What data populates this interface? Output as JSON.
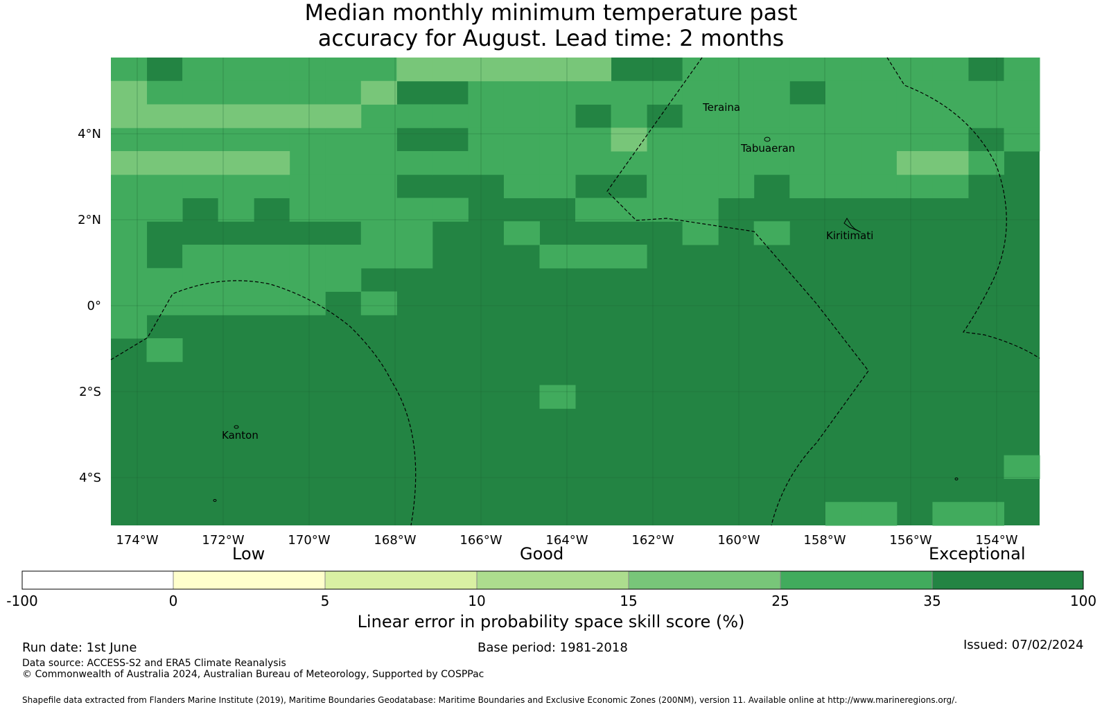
{
  "title_line1": "Median monthly minimum temperature past",
  "title_line2": "accuracy for August. Lead time: 2 months",
  "map": {
    "lon_labels": [
      "174°W",
      "172°W",
      "170°W",
      "168°W",
      "166°W",
      "164°W",
      "162°W",
      "160°W",
      "158°W",
      "156°W",
      "154°W"
    ],
    "lat_labels": [
      "4°N",
      "2°N",
      "0°",
      "2°S",
      "4°S"
    ],
    "places": [
      "Teraina",
      "Tabuaeran",
      "Kiritimati",
      "Kanton"
    ],
    "colors": {
      "very_light": "#78c679",
      "light": "#41ab5d",
      "dark": "#238443"
    },
    "grid_cells": {
      "cols": 26,
      "rows": 20,
      "light": [
        [
          0,
          0
        ],
        [
          2,
          0
        ],
        [
          3,
          0
        ],
        [
          4,
          0
        ],
        [
          5,
          0
        ],
        [
          6,
          0
        ],
        [
          7,
          0
        ],
        [
          8,
          0
        ],
        [
          9,
          0
        ],
        [
          10,
          0
        ],
        [
          11,
          0
        ],
        [
          12,
          0
        ],
        [
          16,
          0
        ],
        [
          17,
          0
        ],
        [
          18,
          0
        ],
        [
          19,
          0
        ],
        [
          20,
          0
        ],
        [
          21,
          0
        ],
        [
          22,
          0
        ],
        [
          23,
          0
        ],
        [
          25,
          0
        ],
        [
          1,
          1
        ],
        [
          2,
          1
        ],
        [
          3,
          1
        ],
        [
          4,
          1
        ],
        [
          5,
          1
        ],
        [
          6,
          1
        ],
        [
          7,
          1
        ],
        [
          10,
          1
        ],
        [
          11,
          1
        ],
        [
          12,
          1
        ],
        [
          13,
          1
        ],
        [
          14,
          1
        ],
        [
          15,
          1
        ],
        [
          16,
          1
        ],
        [
          17,
          1
        ],
        [
          18,
          1
        ],
        [
          20,
          1
        ],
        [
          21,
          1
        ],
        [
          22,
          1
        ],
        [
          23,
          1
        ],
        [
          24,
          1
        ],
        [
          25,
          1
        ],
        [
          5,
          2
        ],
        [
          6,
          2
        ],
        [
          7,
          2
        ],
        [
          8,
          2
        ],
        [
          9,
          2
        ],
        [
          10,
          2
        ],
        [
          11,
          2
        ],
        [
          12,
          2
        ],
        [
          14,
          2
        ],
        [
          16,
          2
        ],
        [
          17,
          2
        ],
        [
          18,
          2
        ],
        [
          19,
          2
        ],
        [
          20,
          2
        ],
        [
          21,
          2
        ],
        [
          22,
          2
        ],
        [
          23,
          2
        ],
        [
          24,
          2
        ],
        [
          25,
          2
        ],
        [
          0,
          3
        ],
        [
          1,
          3
        ],
        [
          2,
          3
        ],
        [
          3,
          3
        ],
        [
          4,
          3
        ],
        [
          5,
          3
        ],
        [
          6,
          3
        ],
        [
          7,
          3
        ],
        [
          10,
          3
        ],
        [
          11,
          3
        ],
        [
          12,
          3
        ],
        [
          13,
          3
        ],
        [
          14,
          3
        ],
        [
          15,
          3
        ],
        [
          16,
          3
        ],
        [
          17,
          3
        ],
        [
          18,
          3
        ],
        [
          19,
          3
        ],
        [
          20,
          3
        ],
        [
          21,
          3
        ],
        [
          22,
          3
        ],
        [
          23,
          3
        ],
        [
          25,
          3
        ],
        [
          5,
          4
        ],
        [
          6,
          4
        ],
        [
          7,
          4
        ],
        [
          8,
          4
        ],
        [
          9,
          4
        ],
        [
          10,
          4
        ],
        [
          11,
          4
        ],
        [
          12,
          4
        ],
        [
          13,
          4
        ],
        [
          14,
          4
        ],
        [
          15,
          4
        ],
        [
          16,
          4
        ],
        [
          17,
          4
        ],
        [
          18,
          4
        ],
        [
          19,
          4
        ],
        [
          20,
          4
        ],
        [
          21,
          4
        ],
        [
          24,
          4
        ],
        [
          0,
          5
        ],
        [
          1,
          5
        ],
        [
          2,
          5
        ],
        [
          3,
          5
        ],
        [
          4,
          5
        ],
        [
          5,
          5
        ],
        [
          6,
          5
        ],
        [
          7,
          5
        ],
        [
          11,
          5
        ],
        [
          12,
          5
        ],
        [
          15,
          5
        ],
        [
          16,
          5
        ],
        [
          17,
          5
        ],
        [
          19,
          5
        ],
        [
          20,
          5
        ],
        [
          21,
          5
        ],
        [
          22,
          5
        ],
        [
          23,
          5
        ],
        [
          0,
          6
        ],
        [
          1,
          6
        ],
        [
          3,
          6
        ],
        [
          5,
          6
        ],
        [
          6,
          6
        ],
        [
          7,
          6
        ],
        [
          8,
          6
        ],
        [
          9,
          6
        ],
        [
          13,
          6
        ],
        [
          14,
          6
        ],
        [
          15,
          6
        ],
        [
          16,
          6
        ],
        [
          0,
          7
        ],
        [
          7,
          7
        ],
        [
          8,
          7
        ],
        [
          11,
          7
        ],
        [
          16,
          7
        ],
        [
          18,
          7
        ],
        [
          0,
          8
        ],
        [
          2,
          8
        ],
        [
          3,
          8
        ],
        [
          4,
          8
        ],
        [
          5,
          8
        ],
        [
          6,
          8
        ],
        [
          7,
          8
        ],
        [
          8,
          8
        ],
        [
          12,
          8
        ],
        [
          13,
          8
        ],
        [
          14,
          8
        ],
        [
          0,
          9
        ],
        [
          1,
          9
        ],
        [
          2,
          9
        ],
        [
          3,
          9
        ],
        [
          4,
          9
        ],
        [
          5,
          9
        ],
        [
          6,
          9
        ],
        [
          0,
          10
        ],
        [
          1,
          10
        ],
        [
          2,
          10
        ],
        [
          3,
          10
        ],
        [
          4,
          10
        ],
        [
          5,
          10
        ],
        [
          7,
          10
        ],
        [
          0,
          11
        ],
        [
          1,
          12
        ],
        [
          12,
          14
        ],
        [
          25,
          17
        ],
        [
          20,
          19
        ],
        [
          21,
          19
        ],
        [
          23,
          19
        ],
        [
          24,
          19
        ]
      ],
      "very_light": [
        [
          7,
          1
        ],
        [
          0,
          1
        ],
        [
          8,
          0
        ],
        [
          9,
          0
        ],
        [
          10,
          0
        ],
        [
          11,
          0
        ],
        [
          12,
          0
        ],
        [
          13,
          0
        ],
        [
          0,
          2
        ],
        [
          1,
          2
        ],
        [
          2,
          2
        ],
        [
          3,
          2
        ],
        [
          4,
          2
        ],
        [
          5,
          2
        ],
        [
          6,
          2
        ],
        [
          14,
          3
        ],
        [
          0,
          4
        ],
        [
          1,
          4
        ],
        [
          2,
          4
        ],
        [
          3,
          4
        ],
        [
          4,
          4
        ],
        [
          22,
          4
        ],
        [
          23,
          4
        ]
      ]
    }
  },
  "colorbar": {
    "category_labels": [
      "Low",
      "Good",
      "Exceptional"
    ],
    "tick_labels": [
      "-100",
      "0",
      "5",
      "10",
      "15",
      "25",
      "35",
      "100"
    ],
    "colors": [
      "#ffffff",
      "#ffffcc",
      "#d9f0a3",
      "#addd8e",
      "#78c679",
      "#41ab5d",
      "#238443"
    ],
    "title": "Linear error in probability space skill score (%)"
  },
  "footer": {
    "run_date": "Run date: 1st June",
    "base_period": "Base period: 1981-2018",
    "issued": "Issued: 07/02/2024",
    "data_source": "Data source: ACCESS-S2 and ERA5 Climate Reanalysis",
    "copyright": "© Commonwealth of Australia 2024, Australian Bureau of Meteorology, Supported by COSPPac",
    "shapefile": "Shapefile data extracted from Flanders Marine Institute (2019), Maritime Boundaries Geodatabase: Maritime Boundaries and Exclusive Economic Zones (200NM), version 11. Available online at http://www.marineregions.org/."
  }
}
